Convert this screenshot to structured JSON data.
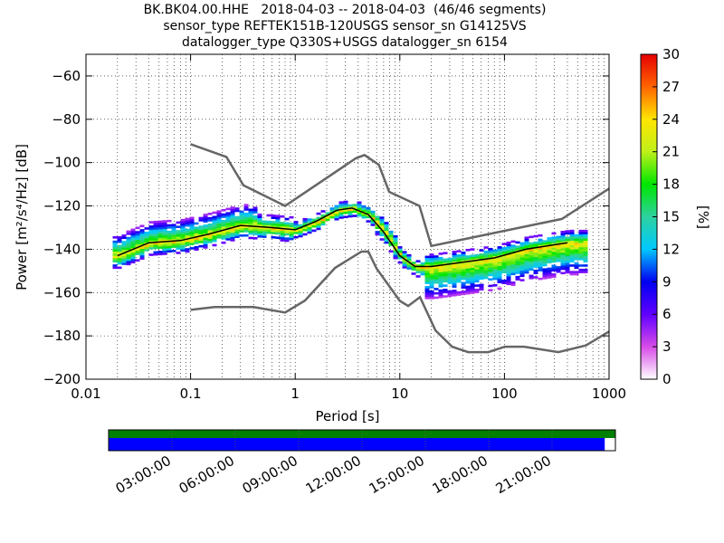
{
  "chart_data": {
    "type": "heatmap",
    "title_lines": [
      "BK.BK04.00.HHE   2018-04-03 -- 2018-04-03  (46/46 segments)",
      "sensor_type REFTEK151B-120USGS sensor_sn G14125VS",
      "datalogger_type Q330S+USGS datalogger_sn 6154"
    ],
    "xlabel": "Period [s]",
    "ylabel": "Power [m²/s⁴/Hz] [dB]",
    "x_scale": "log",
    "xlim": [
      0.01,
      1000
    ],
    "ylim": [
      -200,
      -50
    ],
    "x_ticks": [
      0.01,
      0.1,
      1,
      10,
      100,
      1000
    ],
    "x_tick_labels": [
      "0.01",
      "0.1",
      "1",
      "10",
      "100",
      "1000"
    ],
    "y_ticks": [
      -200,
      -180,
      -160,
      -140,
      -120,
      -100,
      -80,
      -60
    ],
    "y_tick_labels": [
      "−200",
      "−180",
      "−160",
      "−140",
      "−120",
      "−100",
      "−80",
      "−60"
    ],
    "grid": true,
    "colorbar": {
      "label": "[%]",
      "range": [
        0,
        30
      ],
      "ticks": [
        "0",
        "3",
        "6",
        "9",
        "12",
        "15",
        "18",
        "21",
        "24",
        "27",
        "30"
      ],
      "colormap": "pqlx"
    },
    "noise_models": {
      "high": {
        "x": [
          0.1,
          0.22,
          0.32,
          0.8,
          3.8,
          4.6,
          6.3,
          7.9,
          15.4,
          20,
          354,
          1000
        ],
        "y": [
          -91.5,
          -97.4,
          -110.5,
          -120,
          -98,
          -96.5,
          -101,
          -113.5,
          -120,
          -138.5,
          -126,
          -112
        ]
      },
      "low": {
        "x": [
          0.1,
          0.17,
          0.4,
          0.8,
          1.24,
          2.4,
          4.3,
          5,
          6,
          10,
          12,
          15.6,
          21.9,
          31.6,
          45,
          70,
          101,
          154,
          328,
          600,
          1000
        ],
        "y": [
          -168,
          -166.7,
          -166.7,
          -169.2,
          -163.7,
          -148.6,
          -141.1,
          -141.1,
          -149,
          -163.8,
          -166.2,
          -162.1,
          -177.5,
          -185,
          -187.5,
          -187.5,
          -185,
          -185,
          -187.5,
          -184.4,
          -178
        ]
      }
    },
    "mode_curve": {
      "x": [
        0.02,
        0.04,
        0.08,
        0.15,
        0.3,
        0.6,
        1,
        1.6,
        2.5,
        3.5,
        5,
        7,
        10,
        14,
        20,
        40,
        80,
        160,
        400
      ],
      "y": [
        -143,
        -137,
        -136,
        -133,
        -129,
        -130,
        -131,
        -127,
        -122,
        -121,
        -124,
        -132,
        -143,
        -148,
        -148,
        -146,
        -144,
        -140,
        -137
      ]
    },
    "timeline": {
      "tick_labels": [
        "03:00:00",
        "06:00:00",
        "09:00:00",
        "12:00:00",
        "15:00:00",
        "18:00:00",
        "21:00:00"
      ],
      "coverage_color": "#008000",
      "gap_color": "#0000ff",
      "blue_fraction": 0.979
    }
  }
}
